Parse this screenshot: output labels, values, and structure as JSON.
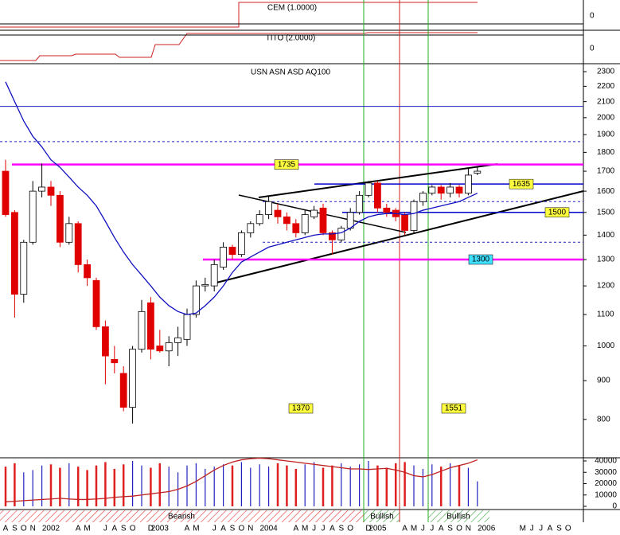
{
  "chart_data": {
    "type": "candlestick",
    "title": "USN ASN ASD AQ100",
    "log_scale": true,
    "ylim": [
      712,
      2345
    ],
    "yticks": [
      800,
      900,
      1000,
      1100,
      1200,
      1300,
      1400,
      1500,
      1600,
      1700,
      1800,
      1900,
      2000,
      2100,
      2200,
      2300
    ],
    "categories": [
      "A",
      "S",
      "O",
      "N",
      null,
      "2002",
      null,
      null,
      "A",
      "M",
      null,
      "J",
      "A",
      "S",
      "O",
      null,
      "D",
      "2003",
      null,
      null,
      "A",
      "M",
      null,
      "J",
      "A",
      "S",
      "O",
      "N",
      null,
      "2004",
      null,
      null,
      "A",
      "M",
      "J",
      "J",
      "A",
      "S",
      "O",
      null,
      "D",
      "2005",
      null,
      null,
      "A",
      "M",
      "J",
      "J",
      "A",
      "S",
      "O",
      "N",
      null,
      "2006",
      null,
      null,
      null,
      "M",
      "J",
      "J",
      "A",
      "S",
      "O"
    ],
    "open": [
      1700,
      1500,
      1170,
      1370,
      1600,
      1620,
      1580,
      1370,
      1450,
      1280,
      1220,
      1060,
      960,
      920,
      830,
      990,
      1140,
      1000,
      985,
      1010,
      1020,
      1100,
      1200,
      1200,
      1270,
      1350,
      1320,
      1410,
      1450,
      1490,
      1510,
      1480,
      1450,
      1410,
      1480,
      1520,
      1410,
      1380,
      1430,
      1500,
      1580,
      1640,
      1520,
      1510,
      1490,
      1420,
      1550,
      1590,
      1620,
      1590,
      1620,
      1590,
      1690,
      null,
      null,
      null,
      null,
      null,
      null,
      null,
      null,
      null,
      null
    ],
    "high": [
      1760,
      1510,
      1380,
      1650,
      1740,
      1650,
      1600,
      1480,
      1460,
      1300,
      1230,
      1080,
      1000,
      940,
      1000,
      1150,
      1160,
      1050,
      1030,
      1060,
      1120,
      1220,
      1230,
      1300,
      1370,
      1360,
      1420,
      1460,
      1510,
      1580,
      1540,
      1500,
      1470,
      1510,
      1530,
      1540,
      1420,
      1440,
      1520,
      1600,
      1650,
      1650,
      1540,
      1520,
      1500,
      1560,
      1600,
      1630,
      1630,
      1640,
      1630,
      1720,
      1720,
      null,
      null,
      null,
      null,
      null,
      null,
      null,
      null,
      null,
      null
    ],
    "low": [
      1480,
      1090,
      1140,
      1360,
      1570,
      1530,
      1350,
      1360,
      1250,
      1200,
      1050,
      890,
      920,
      820,
      790,
      980,
      960,
      980,
      940,
      970,
      1000,
      1090,
      1180,
      1180,
      1260,
      1300,
      1310,
      1390,
      1440,
      1470,
      1450,
      1420,
      1390,
      1400,
      1470,
      1400,
      1320,
      1370,
      1420,
      1490,
      1570,
      1500,
      1480,
      1460,
      1400,
      1410,
      1530,
      1580,
      1560,
      1570,
      1570,
      1580,
      1680,
      null,
      null,
      null,
      null,
      null,
      null,
      null,
      null,
      null,
      null
    ],
    "close": [
      1490,
      1170,
      1370,
      1600,
      1620,
      1580,
      1370,
      1450,
      1280,
      1230,
      1060,
      970,
      950,
      830,
      990,
      1110,
      990,
      985,
      1010,
      1025,
      1100,
      1200,
      1205,
      1280,
      1350,
      1320,
      1410,
      1450,
      1490,
      1550,
      1480,
      1450,
      1410,
      1490,
      1510,
      1410,
      1380,
      1430,
      1500,
      1580,
      1640,
      1520,
      1500,
      1480,
      1420,
      1550,
      1590,
      1620,
      1590,
      1620,
      1590,
      1680,
      1700,
      null,
      null,
      null,
      null,
      null,
      null,
      null,
      null,
      null,
      null
    ],
    "ma": [
      2230,
      2100,
      1980,
      1890,
      1830,
      1760,
      1720,
      1670,
      1620,
      1580,
      1530,
      1460,
      1390,
      1330,
      1280,
      1240,
      1200,
      1160,
      1130,
      1110,
      1100,
      1105,
      1130,
      1160,
      1200,
      1250,
      1290,
      1310,
      1330,
      1350,
      1360,
      1370,
      1380,
      1390,
      1400,
      1405,
      1405,
      1410,
      1430,
      1460,
      1480,
      1490,
      1495,
      1495,
      1490,
      1495,
      1510,
      1520,
      1530,
      1540,
      1550,
      1570,
      1590,
      null,
      null,
      null,
      null,
      null,
      null,
      null,
      null,
      null,
      null
    ],
    "levels": [
      {
        "value": 1735,
        "color": "#ff00ff"
      },
      {
        "value": 1635,
        "color": "#0000cc"
      },
      {
        "value": 1500,
        "color": "#0000cc"
      },
      {
        "value": 1300,
        "color": "#ff00ff"
      }
    ],
    "reference_lines": [
      2070,
      1860,
      1550,
      1370
    ],
    "annotations": [
      1370,
      1551
    ],
    "volume": [
      35000,
      38000,
      30000,
      32000,
      36000,
      37000,
      34000,
      38000,
      35000,
      32000,
      36000,
      39000,
      33000,
      37000,
      40000,
      36000,
      34000,
      38000,
      35000,
      30000,
      36000,
      38000,
      33000,
      35000,
      37000,
      36000,
      39000,
      34000,
      37000,
      35000,
      38000,
      36000,
      33000,
      37000,
      39000,
      34000,
      36000,
      38000,
      35000,
      37000,
      40000,
      36000,
      34000,
      38000,
      39000,
      36000,
      33000,
      37000,
      35000,
      38000,
      36000,
      34000,
      22000,
      null,
      null,
      null,
      null,
      null,
      null,
      null,
      null,
      null,
      null
    ],
    "volume_ma": [
      4000,
      4500,
      5000,
      5500,
      6000,
      6500,
      7000,
      6500,
      6000,
      6000,
      6500,
      7000,
      8000,
      8500,
      9000,
      10000,
      11000,
      12000,
      13000,
      15000,
      18000,
      22000,
      27000,
      32000,
      36000,
      39000,
      41000,
      42000,
      42500,
      42000,
      41000,
      40000,
      39000,
      38000,
      37000,
      36000,
      35000,
      34000,
      33000,
      33000,
      32500,
      33000,
      33500,
      32000,
      30000,
      27000,
      26000,
      28000,
      31000,
      34000,
      36000,
      38000,
      41000,
      null,
      null,
      null,
      null,
      null,
      null,
      null,
      null,
      null,
      null
    ],
    "volume_ylim": [
      0,
      42800
    ],
    "volume_yticks": [
      0,
      10000,
      20000,
      30000,
      40000
    ],
    "indicators": [
      {
        "name": "CEM (1.0000)",
        "yticks": [
          0
        ]
      },
      {
        "name": "TITO (2.0000)",
        "yticks": [
          0
        ]
      }
    ],
    "regions": [
      "Bearish",
      "Bullish",
      "Bullish"
    ]
  }
}
